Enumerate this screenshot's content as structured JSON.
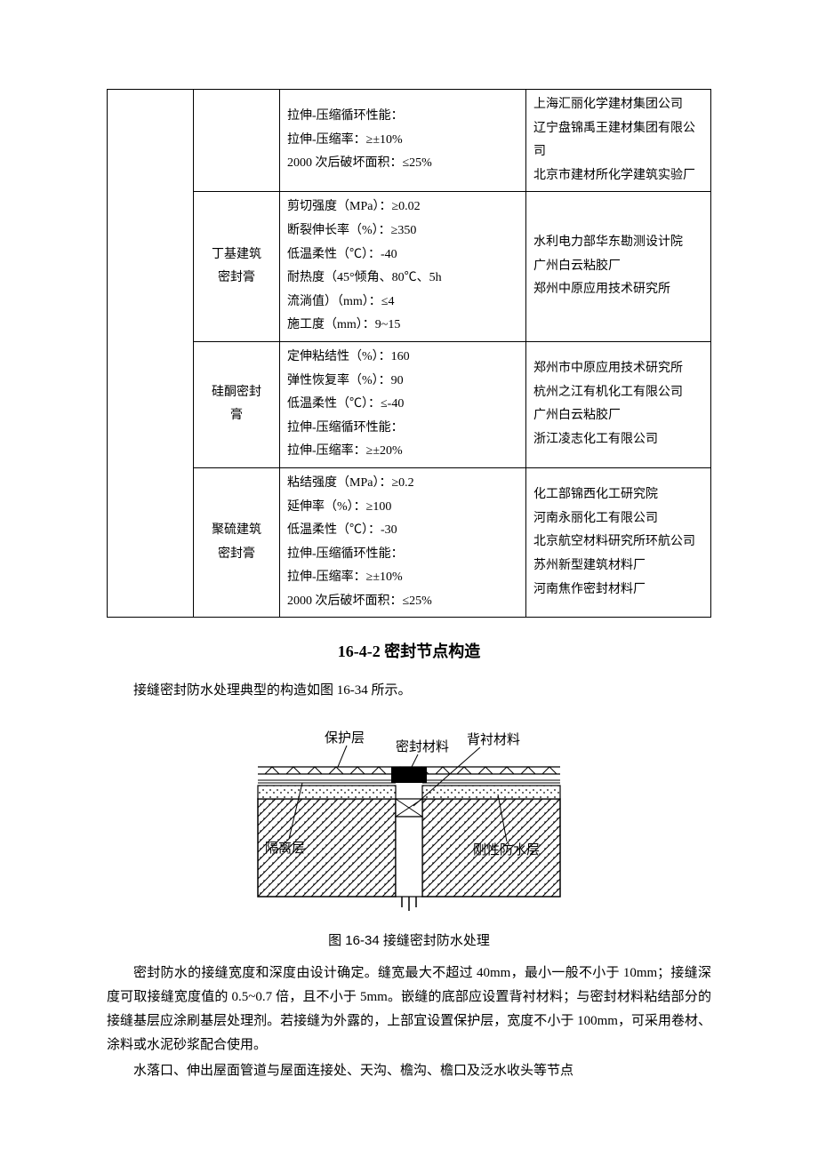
{
  "table": {
    "rows": [
      {
        "name_lines": [
          ""
        ],
        "props": [
          "拉伸-压缩循环性能：",
          "拉伸-压缩率：≥±10%",
          "2000 次后破坏面积：≤25%"
        ],
        "makers": [
          "上海汇丽化学建材集团公司",
          "辽宁盘锦禹王建材集团有限公司",
          "北京市建材所化学建筑实验厂"
        ]
      },
      {
        "name_lines": [
          "丁基建筑",
          "密封膏"
        ],
        "props": [
          "剪切强度（MPa）：≥0.02",
          "断裂伸长率（%）：≥350",
          "低温柔性（℃）：-40",
          "耐热度（45°倾角、80℃、5h",
          "流淌值）（mm）：≤4",
          "施工度（mm）：9~15"
        ],
        "makers": [
          "水利电力部华东勘测设计院",
          "广州白云粘胶厂",
          "郑州中原应用技术研究所"
        ]
      },
      {
        "name_lines": [
          "硅酮密封",
          "膏"
        ],
        "props": [
          "定伸粘结性（%）：160",
          "弹性恢复率（%）：90",
          "低温柔性（℃）：≤-40",
          "拉伸-压缩循环性能：",
          "拉伸-压缩率：≥±20%"
        ],
        "makers": [
          "郑州市中原应用技术研究所",
          "杭州之江有机化工有限公司",
          "广州白云粘胶厂",
          "浙江凌志化工有限公司"
        ]
      },
      {
        "name_lines": [
          "聚硫建筑",
          "密封膏"
        ],
        "props": [
          "粘结强度（MPa）：≥0.2",
          "延伸率（%）：≥100",
          "低温柔性（℃）：-30",
          "拉伸-压缩循环性能：",
          "拉伸-压缩率：≥±10%",
          "2000 次后破坏面积：≤25%"
        ],
        "makers": [
          "化工部锦西化工研究院",
          "河南永丽化工有限公司",
          "北京航空材料研究所环航公司",
          "苏州新型建筑材料厂",
          "河南焦作密封材料厂"
        ]
      }
    ]
  },
  "section_title": "16-4-2  密封节点构造",
  "para1": "接缝密封防水处理典型的构造如图 16-34 所示。",
  "figure": {
    "labels": {
      "protect": "保护层",
      "sealant": "密封材料",
      "backing": "背衬材料",
      "isolate": "隔离层",
      "rigid": "刚性防水层"
    },
    "caption": "图 16-34 接缝密封防水处理"
  },
  "para2": "密封防水的接缝宽度和深度由设计确定。缝宽最大不超过 40mm，最小一般不小于 10mm；接缝深度可取接缝宽度值的 0.5~0.7 倍，且不小于 5mm。嵌缝的底部应设置背衬材料；与密封材料粘结部分的接缝基层应涂刷基层处理剂。若接缝为外露的，上部宜设置保护层，宽度不小于 100mm，可采用卷材、涂料或水泥砂浆配合使用。",
  "para3": "水落口、伸出屋面管道与屋面连接处、天沟、檐沟、檐口及泛水收头等节点"
}
